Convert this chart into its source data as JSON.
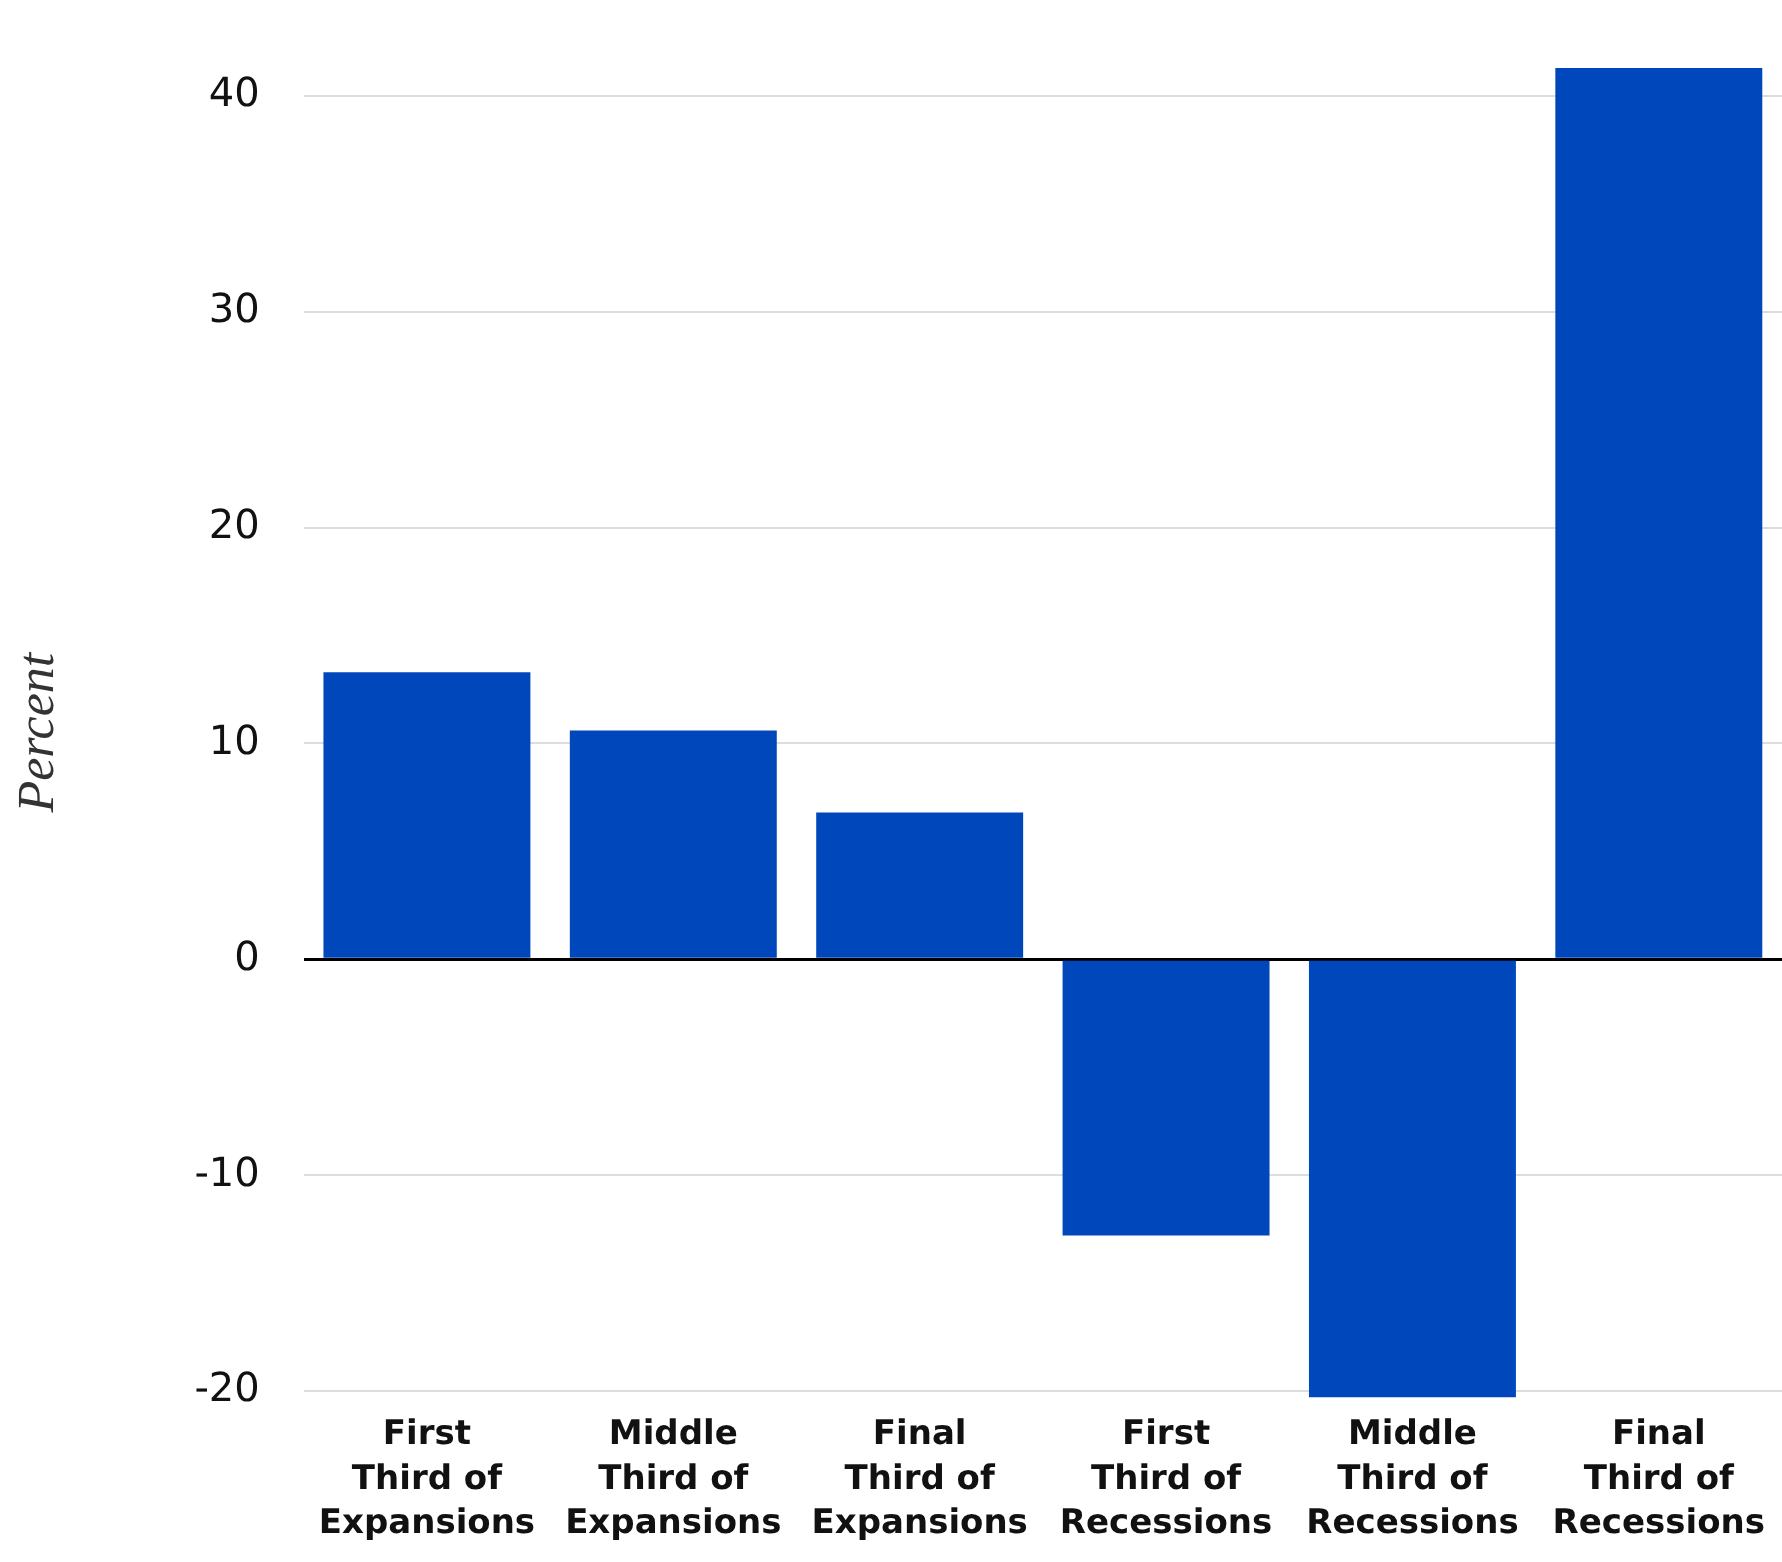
{
  "chart_data": {
    "type": "bar",
    "ylabel": "Percent",
    "categories": [
      "First Third of Expansions",
      "Middle Third of Expansions",
      "Final Third of Expansions",
      "First Third of Recessions",
      "Middle Third of Recessions",
      "Final Third of Recessions"
    ],
    "values": [
      13.3,
      10.6,
      6.8,
      -12.8,
      -20.3,
      41.3
    ],
    "color": "#0047bb",
    "ylim": [
      -20.3,
      41.3
    ],
    "yticks": [
      -20,
      -10,
      0,
      10,
      20,
      30,
      40
    ],
    "grid": "y",
    "legend": false
  }
}
